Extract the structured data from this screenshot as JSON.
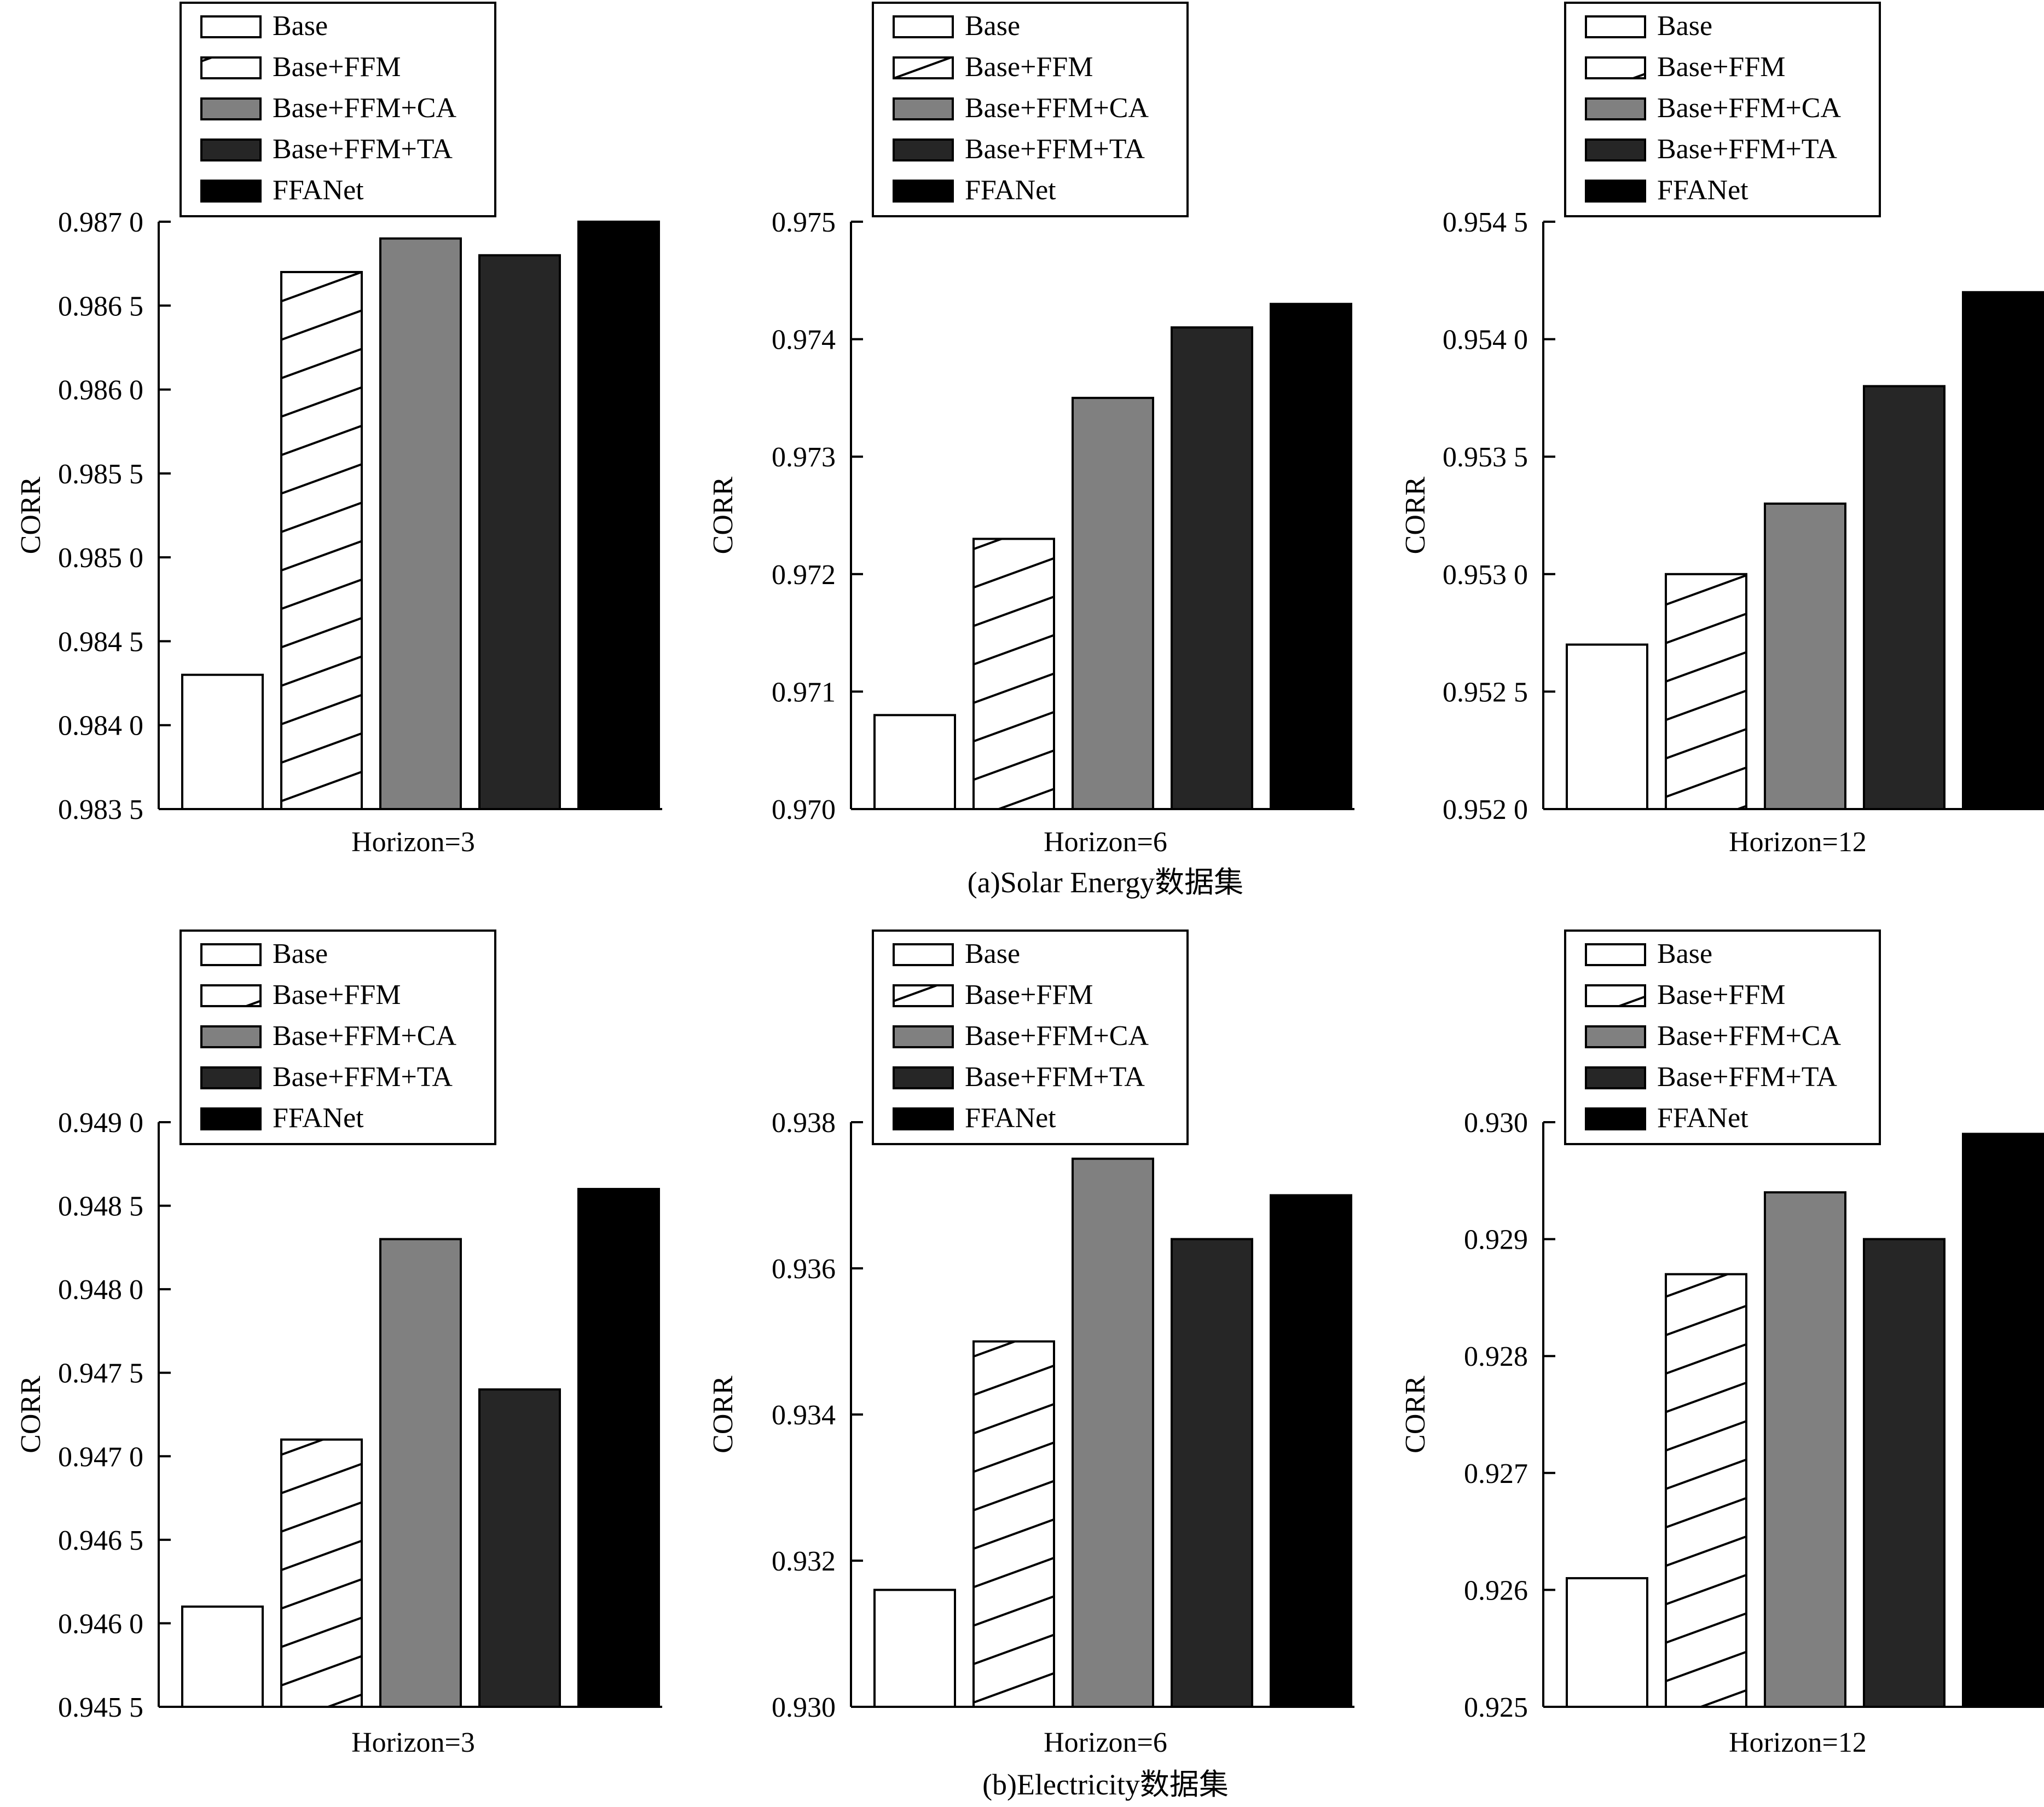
{
  "figure": {
    "captions": [
      "(a)Solar Energy数据集",
      "(b)Electricity数据集"
    ]
  },
  "legend_labels": [
    "Base",
    "Base+FFM",
    "Base+FFM+CA",
    "Base+FFM+TA",
    "FFANet"
  ],
  "colors": {
    "Base": "#ffffff",
    "Base+FFM": "hatch",
    "Base+FFM+CA": "#808080",
    "Base+FFM+TA": "#262626",
    "FFANet": "#000000"
  },
  "chart_data": [
    {
      "type": "bar",
      "group": "(a)Solar Energy数据集",
      "xlabel": "Horizon=3",
      "ylabel": "CORR",
      "ylim": [
        0.9835,
        0.987
      ],
      "yticks": [
        0.9835,
        0.984,
        0.9845,
        0.985,
        0.9855,
        0.986,
        0.9865,
        0.987
      ],
      "ytick_labels": [
        "0.983 5",
        "0.984 0",
        "0.984 5",
        "0.985 0",
        "0.985 5",
        "0.986 0",
        "0.986 5",
        "0.987 0"
      ],
      "series": [
        {
          "name": "Base",
          "value": 0.9843
        },
        {
          "name": "Base+FFM",
          "value": 0.9867
        },
        {
          "name": "Base+FFM+CA",
          "value": 0.9869
        },
        {
          "name": "Base+FFM+TA",
          "value": 0.9868
        },
        {
          "name": "FFANet",
          "value": 0.987
        }
      ],
      "legend_position": "top",
      "grid": false
    },
    {
      "type": "bar",
      "group": "(a)Solar Energy数据集",
      "xlabel": "Horizon=6",
      "ylabel": "CORR",
      "ylim": [
        0.97,
        0.975
      ],
      "yticks": [
        0.97,
        0.971,
        0.972,
        0.973,
        0.974,
        0.975
      ],
      "ytick_labels": [
        "0.970",
        "0.971",
        "0.972",
        "0.973",
        "0.974",
        "0.975"
      ],
      "series": [
        {
          "name": "Base",
          "value": 0.9708
        },
        {
          "name": "Base+FFM",
          "value": 0.9723
        },
        {
          "name": "Base+FFM+CA",
          "value": 0.9735
        },
        {
          "name": "Base+FFM+TA",
          "value": 0.9741
        },
        {
          "name": "FFANet",
          "value": 0.9743
        }
      ],
      "legend_position": "top",
      "grid": false
    },
    {
      "type": "bar",
      "group": "(a)Solar Energy数据集",
      "xlabel": "Horizon=12",
      "ylabel": "CORR",
      "ylim": [
        0.952,
        0.9545
      ],
      "yticks": [
        0.952,
        0.9525,
        0.953,
        0.9535,
        0.954,
        0.9545
      ],
      "ytick_labels": [
        "0.952 0",
        "0.952 5",
        "0.953 0",
        "0.953 5",
        "0.954 0",
        "0.954 5"
      ],
      "series": [
        {
          "name": "Base",
          "value": 0.9527
        },
        {
          "name": "Base+FFM",
          "value": 0.953
        },
        {
          "name": "Base+FFM+CA",
          "value": 0.9533
        },
        {
          "name": "Base+FFM+TA",
          "value": 0.9538
        },
        {
          "name": "FFANet",
          "value": 0.9542
        }
      ],
      "legend_position": "top",
      "grid": false
    },
    {
      "type": "bar",
      "group": "(b)Electricity数据集",
      "xlabel": "Horizon=3",
      "ylabel": "CORR",
      "ylim": [
        0.9455,
        0.949
      ],
      "yticks": [
        0.9455,
        0.946,
        0.9465,
        0.947,
        0.9475,
        0.948,
        0.9485,
        0.949
      ],
      "ytick_labels": [
        "0.945 5",
        "0.946 0",
        "0.946 5",
        "0.947 0",
        "0.947 5",
        "0.948 0",
        "0.948 5",
        "0.949 0"
      ],
      "series": [
        {
          "name": "Base",
          "value": 0.9461
        },
        {
          "name": "Base+FFM",
          "value": 0.9471
        },
        {
          "name": "Base+FFM+CA",
          "value": 0.9483
        },
        {
          "name": "Base+FFM+TA",
          "value": 0.9474
        },
        {
          "name": "FFANet",
          "value": 0.9486
        }
      ],
      "legend_position": "top",
      "grid": false
    },
    {
      "type": "bar",
      "group": "(b)Electricity数据集",
      "xlabel": "Horizon=6",
      "ylabel": "CORR",
      "ylim": [
        0.93,
        0.938
      ],
      "yticks": [
        0.93,
        0.932,
        0.934,
        0.936,
        0.938
      ],
      "ytick_labels": [
        "0.930",
        "0.932",
        "0.934",
        "0.936",
        "0.938"
      ],
      "series": [
        {
          "name": "Base",
          "value": 0.9316
        },
        {
          "name": "Base+FFM",
          "value": 0.935
        },
        {
          "name": "Base+FFM+CA",
          "value": 0.9375
        },
        {
          "name": "Base+FFM+TA",
          "value": 0.9364
        },
        {
          "name": "FFANet",
          "value": 0.937
        }
      ],
      "legend_position": "top",
      "grid": false
    },
    {
      "type": "bar",
      "group": "(b)Electricity数据集",
      "xlabel": "Horizon=12",
      "ylabel": "CORR",
      "ylim": [
        0.925,
        0.93
      ],
      "yticks": [
        0.925,
        0.926,
        0.927,
        0.928,
        0.929,
        0.93
      ],
      "ytick_labels": [
        "0.925",
        "0.926",
        "0.927",
        "0.928",
        "0.929",
        "0.930"
      ],
      "series": [
        {
          "name": "Base",
          "value": 0.9261
        },
        {
          "name": "Base+FFM",
          "value": 0.9287
        },
        {
          "name": "Base+FFM+CA",
          "value": 0.9294
        },
        {
          "name": "Base+FFM+TA",
          "value": 0.929
        },
        {
          "name": "FFANet",
          "value": 0.9299
        }
      ],
      "legend_position": "top",
      "grid": false
    }
  ]
}
